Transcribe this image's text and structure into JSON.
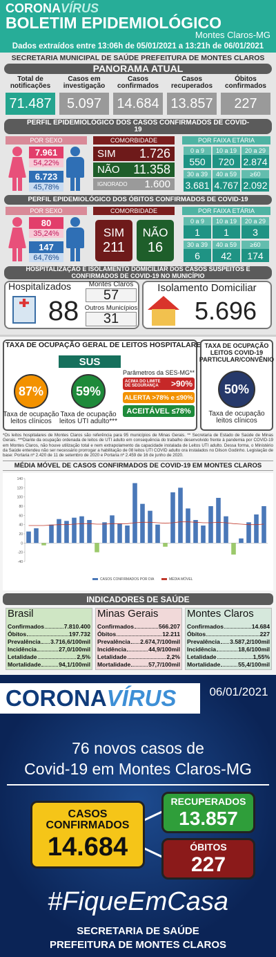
{
  "header": {
    "brand_a": "CORONA",
    "brand_b": "VÍRUS",
    "title": "BOLETIM EPIDEMIOLÓGICO",
    "city": "Montes Claros-MG",
    "dates": "Dados extraídos entre 13:06h de 05/01/2021 a 13:21h de 06/01/2021"
  },
  "secretaria": "SECRETARIA MUNICIPAL DE SAÚDE PREFEITURA DE MONTES CLAROS",
  "panorama": {
    "title": "PANORAMA ATUAL",
    "items": [
      {
        "label": "Total de notificações",
        "value": "71.487"
      },
      {
        "label": "Casos em investigação",
        "value": "5.097"
      },
      {
        "label": "Casos confirmados",
        "value": "14.684"
      },
      {
        "label": "Casos recuperados",
        "value": "13.857"
      },
      {
        "label": "Óbitos confirmados",
        "value": "227"
      }
    ]
  },
  "perfil_casos": {
    "title": "PERFIL EPIDEMIOLÓGICO DOS CASOS CONFIRMADOS DE COVID-19",
    "sexo_label": "POR SEXO",
    "comorb_label": "COMORBIDADE",
    "faixa_label": "POR FAIXA ETÁRIA",
    "female": {
      "count": "7.961",
      "pct": "54,22%"
    },
    "male": {
      "count": "6.723",
      "pct": "45,78%"
    },
    "comorb": [
      {
        "label": "SIM",
        "value": "1.726"
      },
      {
        "label": "NÃO",
        "value": "11.358"
      },
      {
        "label": "IGNORADO",
        "value": "1.600"
      }
    ],
    "ages": [
      {
        "range": "0 a 9",
        "value": "550"
      },
      {
        "range": "10 a 19",
        "value": "720"
      },
      {
        "range": "20 a 29",
        "value": "2.874"
      },
      {
        "range": "30 a 39",
        "value": "3.681"
      },
      {
        "range": "40 a 59",
        "value": "4.767"
      },
      {
        "range": "≥60",
        "value": "2.092"
      }
    ]
  },
  "perfil_obitos": {
    "title": "PERFIL EPIDEMIOLÓGICO DOS ÓBITOS CONFIRMADOS DE COVID-19",
    "sexo_label": "POR SEXO",
    "comorb_label": "COMORBIDADE",
    "faixa_label": "POR FAIXA ETÁRIA",
    "female": {
      "count": "80",
      "pct": "35,24%"
    },
    "male": {
      "count": "147",
      "pct": "64,76%"
    },
    "comorb": [
      {
        "label": "SIM",
        "value": "211"
      },
      {
        "label": "NÃO",
        "value": "16"
      }
    ],
    "ages": [
      {
        "range": "0 a 9",
        "value": "1"
      },
      {
        "range": "10 a 19",
        "value": "1"
      },
      {
        "range": "20 a 29",
        "value": "3"
      },
      {
        "range": "30 a 39",
        "value": "6"
      },
      {
        "range": "40 a 59",
        "value": "42"
      },
      {
        "range": "≥60",
        "value": "174"
      }
    ]
  },
  "hospital": {
    "title": "HOSPITALIZAÇÃO E ISOLAMENTO DOMICILIAR DOS CASOS SUSPEITOS E CONFIRMADOS DE COVID-19 NO MUNICÍPIO",
    "hosp_label": "Hospitalizados",
    "hosp_value": "88",
    "mc_label": "Montes Claros",
    "mc_value": "57",
    "outros_label": "Outros Municípios",
    "outros_value": "31",
    "iso_label": "Isolamento Domiciliar",
    "iso_value": "5.696"
  },
  "ocupacao": {
    "title": "TAXA DE OCUPAÇÃO GERAL DE LEITOS HOSPITALARES*",
    "sus": "SUS",
    "clinicos_value": "87%",
    "clinicos_label": "Taxa de ocupação leitos clínicos",
    "uti_value": "59%",
    "uti_label": "Taxa de ocupação leitos UTI adulto***",
    "param_title": "Parâmetros da SES-MG**",
    "acima": "ACIMA DO LIMITE DE SEGURANÇA",
    "acima_v": ">90%",
    "alerta": "ALERTA >78% e ≤90%",
    "aceitavel": "ACEITÁVEL ≤78%",
    "part_title": "TAXA DE OCUPAÇÃO LEITOS COVID-19 PARTICULAR/CONVÊNIO",
    "part_value": "50%",
    "part_label": "Taxa de ocupação leitos clínicos",
    "footnote": "*Os leitos hospitalares de Montes Claros são referência para 95 municípios de Minas Gerais. ** Secretaria de Estado de Saúde de Minas Gerais. ***Diante da ocupação ordenada de leitos de UTI adulto em consequência do trabalho desenvolvido frente à pandemia por COVID-19 em Montes Claros, não houve utilização total e nem extrapolamento da capacidade instalada de Leitos UTI adulto. Dessa forma, o Ministério da Saúde entendeu não ser necessário prorrogar a habilitação de 08 leitos UTI COVID adulto ora instalados no Dilson Godinho. Legislação de base: Portaria nº 2.420 de 11 de setembro de 2020 e Portaria nº 2.459 de 16 de junho de 2020."
  },
  "chart_data": {
    "type": "bar",
    "title": "MÉDIA MÓVEL DE CASOS CONFIRMADOS DE COVID-19 EM MONTES CLAROS",
    "series": [
      {
        "name": "CASOS CONFIRMADOS POR DIA",
        "color": "#4a78b8",
        "values": [
          25,
          32,
          -5,
          40,
          52,
          48,
          55,
          58,
          50,
          -20,
          45,
          60,
          42,
          38,
          130,
          85,
          70,
          40,
          -8,
          110,
          120,
          75,
          50,
          38,
          80,
          98,
          58,
          -25,
          10,
          45,
          62,
          80
        ]
      },
      {
        "name": "MÉDIA MÓVEL",
        "color": "#c0392b",
        "type": "line",
        "values": [
          38,
          38,
          38,
          39,
          40,
          40,
          41,
          42,
          42,
          41,
          41,
          42,
          42,
          42,
          44,
          45,
          45,
          44,
          43,
          44,
          46,
          46,
          45,
          44,
          44,
          45,
          44,
          42,
          41,
          40,
          40,
          41
        ]
      }
    ],
    "ylim": [
      -40,
      140
    ],
    "yticks": [
      -40,
      -20,
      0,
      20,
      40,
      60,
      80,
      100,
      120,
      140
    ]
  },
  "indicadores": {
    "title": "INDICADORES DE SAÚDE",
    "regions": [
      {
        "name": "Brasil",
        "rows": [
          [
            "Confirmados",
            "7.810.400"
          ],
          [
            "Óbitos",
            "197.732"
          ],
          [
            "Prevalência",
            "3.716,6/100mil"
          ],
          [
            "Incidência",
            "27,0/100mil"
          ],
          [
            "Letalidade",
            "2,5%"
          ],
          [
            "Mortalidade",
            "94,1/100mil"
          ]
        ]
      },
      {
        "name": "Minas Gerais",
        "rows": [
          [
            "Confirmados",
            "566.207"
          ],
          [
            "Óbitos",
            "12.211"
          ],
          [
            "Prevalência",
            "2.674,7/100mil"
          ],
          [
            "Incidência",
            "44,9/100mil"
          ],
          [
            "Letalidade",
            "2,2%"
          ],
          [
            "Mortalidade",
            "57,7/100mil"
          ]
        ]
      },
      {
        "name": "Montes Claros",
        "rows": [
          [
            "Confirmados",
            "14.684"
          ],
          [
            "Óbitos",
            "227"
          ],
          [
            "Prevalência",
            "3.587,2/100mil"
          ],
          [
            "Incidência",
            "18,6/100mil"
          ],
          [
            "Letalidade",
            "1,55%"
          ],
          [
            "Mortalidade",
            "55,4/100mil"
          ]
        ]
      }
    ]
  },
  "poster": {
    "brand_a": "CORONA",
    "brand_b": "VÍRUS",
    "date": "06/01/2021",
    "line1": "76 novos casos de",
    "line2": "Covid-19 em Montes Claros-MG",
    "casos_label": "CASOS CONFIRMADOS",
    "casos_value": "14.684",
    "rec_label": "RECUPERADOS",
    "rec_value": "13.857",
    "obitos_label": "ÓBITOS",
    "obitos_value": "227",
    "hashtag": "#FiqueEmCasa",
    "footer1": "SECRETARIA DE SAÚDE",
    "footer2": "PREFEITURA DE MONTES CLAROS"
  }
}
